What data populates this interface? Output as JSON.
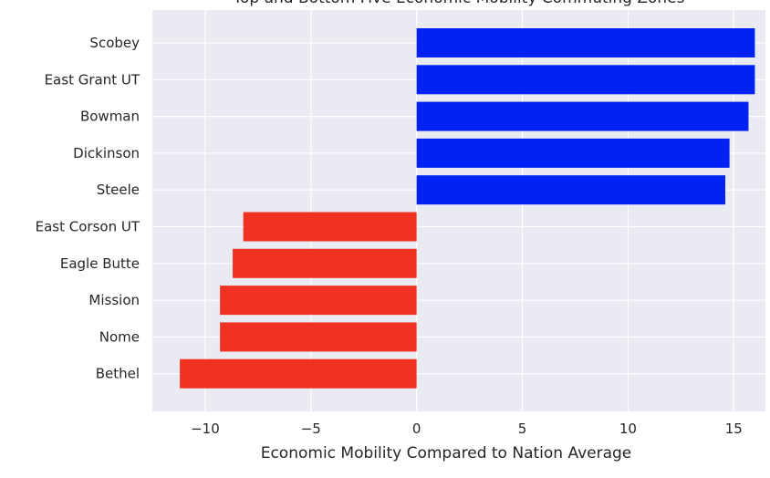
{
  "chart_data": {
    "type": "bar",
    "orientation": "horizontal",
    "title": "Top and Bottom Five Economic Mobility Commuting Zones",
    "xlabel": "Economic Mobility Compared to Nation Average",
    "ylabel": "",
    "categories": [
      "Scobey",
      "East Grant UT",
      "Bowman",
      "Dickinson",
      "Steele",
      "East Corson UT",
      "Eagle Butte",
      "Mission",
      "Nome",
      "Bethel"
    ],
    "values": [
      16.0,
      16.0,
      15.7,
      14.8,
      14.6,
      -8.2,
      -8.7,
      -9.3,
      -9.3,
      -11.2
    ],
    "colors": [
      "#0022f5",
      "#0022f5",
      "#0022f5",
      "#0022f5",
      "#0022f5",
      "#ef3222",
      "#ef3222",
      "#ef3222",
      "#ef3222",
      "#ef3222"
    ],
    "xlim": [
      -12.5,
      16.5
    ],
    "xticks": [
      -10,
      -5,
      0,
      5,
      10,
      15
    ],
    "xtick_labels": [
      "−10",
      "−5",
      "0",
      "5",
      "10",
      "15"
    ],
    "grid": true,
    "background": "#eaeaf2"
  }
}
